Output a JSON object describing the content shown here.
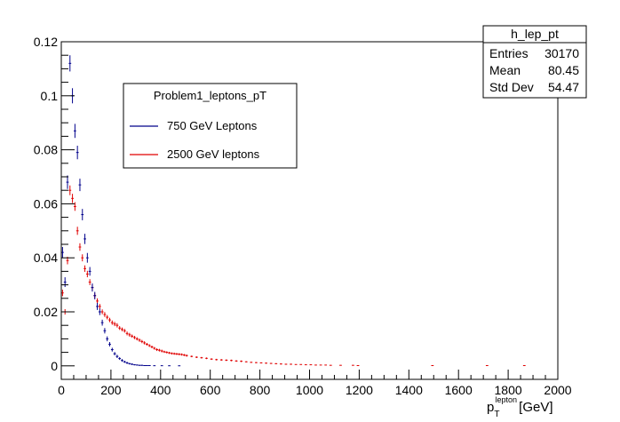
{
  "chart_data": {
    "type": "scatter",
    "style": "histogram-error-bars",
    "x_axis": {
      "min": 0,
      "max": 2000,
      "ticks": [
        0,
        200,
        400,
        600,
        800,
        1000,
        1200,
        1400,
        1600,
        1800,
        2000
      ],
      "label_main": "p",
      "label_sub": "T",
      "label_sup": "lepton",
      "label_unit": " [GeV]"
    },
    "y_axis": {
      "min": -0.005,
      "max": 0.12,
      "ticks": [
        0,
        0.02,
        0.04,
        0.06,
        0.08,
        0.1,
        0.12
      ],
      "tick_labels": [
        "0",
        "0.02",
        "0.04",
        "0.06",
        "0.08",
        "0.1",
        "0.12"
      ]
    },
    "grid": false,
    "legend": {
      "title": "Problem1_leptons_pT",
      "placement": "upper-center-left",
      "entries": [
        {
          "label": "750 GeV Leptons",
          "color": "#00008b"
        },
        {
          "label": "2500 GeV leptons",
          "color": "#e00000"
        }
      ]
    },
    "stats_box": {
      "title": "h_lep_pt",
      "rows": [
        {
          "label": "Entries",
          "value": "30170"
        },
        {
          "label": "Mean",
          "value": "80.45"
        },
        {
          "label": "Std Dev",
          "value": "54.47"
        }
      ]
    },
    "series": [
      {
        "color": "#00008b",
        "x": [
          0,
          10,
          20,
          30,
          40,
          50,
          60,
          70,
          80,
          90,
          100,
          110,
          120,
          130,
          140,
          150,
          160,
          170,
          180,
          190,
          200,
          210,
          220,
          230,
          240,
          250,
          260,
          270,
          280,
          290,
          300,
          310,
          320,
          330,
          340,
          350,
          370,
          400,
          430,
          470
        ],
        "y": [
          0.042,
          0.031,
          0.068,
          0.112,
          0.1,
          0.087,
          0.079,
          0.067,
          0.056,
          0.047,
          0.04,
          0.035,
          0.029,
          0.026,
          0.022,
          0.02,
          0.016,
          0.013,
          0.01,
          0.008,
          0.006,
          0.0045,
          0.0035,
          0.0027,
          0.002,
          0.0015,
          0.0011,
          0.0008,
          0.0006,
          0.0004,
          0.0003,
          0.0002,
          0.0002,
          0.0001,
          0.0001,
          0.0001,
          5e-05,
          5e-05,
          3e-05,
          2e-05
        ],
        "err": [
          0.002,
          0.0018,
          0.0025,
          0.003,
          0.0028,
          0.0026,
          0.0025,
          0.0023,
          0.0021,
          0.0019,
          0.0018,
          0.0016,
          0.0015,
          0.0014,
          0.0013,
          0.0012,
          0.0011,
          0.001,
          0.0009,
          0.0008,
          0.0007,
          0.0006,
          0.0006,
          0.0005,
          0.0005,
          0.0004,
          0.0004,
          0.0003,
          0.0003,
          0.0002,
          0.0002,
          0.0002,
          0.0002,
          0.0001,
          0.0001,
          0.0001,
          0.0001,
          0.0001,
          0.0001,
          0.0001
        ]
      },
      {
        "color": "#e00000",
        "x": [
          0,
          10,
          20,
          30,
          40,
          50,
          60,
          70,
          80,
          90,
          100,
          110,
          120,
          130,
          140,
          150,
          160,
          170,
          180,
          190,
          200,
          210,
          220,
          230,
          240,
          250,
          260,
          270,
          280,
          290,
          300,
          310,
          320,
          330,
          340,
          350,
          360,
          370,
          380,
          390,
          400,
          410,
          420,
          430,
          440,
          450,
          460,
          470,
          480,
          490,
          500,
          520,
          540,
          560,
          580,
          600,
          620,
          640,
          660,
          680,
          700,
          720,
          740,
          760,
          780,
          800,
          820,
          840,
          860,
          880,
          900,
          920,
          940,
          960,
          980,
          1000,
          1020,
          1040,
          1060,
          1080,
          1120,
          1170,
          1190,
          1490,
          1710,
          1860
        ],
        "y": [
          0.027,
          0.02,
          0.039,
          0.065,
          0.062,
          0.059,
          0.05,
          0.044,
          0.04,
          0.036,
          0.034,
          0.031,
          0.029,
          0.026,
          0.024,
          0.022,
          0.02,
          0.019,
          0.018,
          0.017,
          0.016,
          0.0155,
          0.015,
          0.014,
          0.0135,
          0.013,
          0.012,
          0.0115,
          0.011,
          0.0105,
          0.01,
          0.0095,
          0.009,
          0.0085,
          0.008,
          0.0075,
          0.007,
          0.0065,
          0.006,
          0.0058,
          0.0055,
          0.0052,
          0.005,
          0.0048,
          0.0046,
          0.0045,
          0.0044,
          0.0043,
          0.0042,
          0.004,
          0.0038,
          0.0035,
          0.0032,
          0.003,
          0.0028,
          0.0025,
          0.0023,
          0.0022,
          0.0021,
          0.002,
          0.0018,
          0.0017,
          0.0015,
          0.0013,
          0.0012,
          0.0011,
          0.001,
          0.0009,
          0.0008,
          0.0007,
          0.0006,
          0.0006,
          0.0005,
          0.0005,
          0.0004,
          0.0004,
          0.0003,
          0.0003,
          0.0003,
          0.0002,
          0.0002,
          0.0002,
          0.0001,
          0.0001,
          0.0001,
          0.0001
        ],
        "err": [
          0.0012,
          0.001,
          0.0014,
          0.0018,
          0.0017,
          0.0016,
          0.0015,
          0.0014,
          0.0013,
          0.0012,
          0.0012,
          0.0011,
          0.0011,
          0.001,
          0.001,
          0.0009,
          0.0009,
          0.0009,
          0.0008,
          0.0008,
          0.0008,
          0.0008,
          0.0008,
          0.0007,
          0.0007,
          0.0007,
          0.0007,
          0.0007,
          0.0006,
          0.0006,
          0.0006,
          0.0006,
          0.0006,
          0.0006,
          0.0005,
          0.0005,
          0.0005,
          0.0005,
          0.0005,
          0.0005,
          0.0005,
          0.0004,
          0.0004,
          0.0004,
          0.0004,
          0.0004,
          0.0004,
          0.0004,
          0.0004,
          0.0004,
          0.0004,
          0.0003,
          0.0003,
          0.0003,
          0.0003,
          0.0003,
          0.0003,
          0.0003,
          0.0003,
          0.0003,
          0.0003,
          0.0003,
          0.0002,
          0.0002,
          0.0002,
          0.0002,
          0.0002,
          0.0002,
          0.0002,
          0.0002,
          0.0002,
          0.0002,
          0.0001,
          0.0001,
          0.0001,
          0.0001,
          0.0001,
          0.0001,
          0.0001,
          0.0001,
          0.0001,
          0.0001,
          0.0001,
          0.0001,
          0.0001,
          0.0001
        ]
      }
    ]
  }
}
